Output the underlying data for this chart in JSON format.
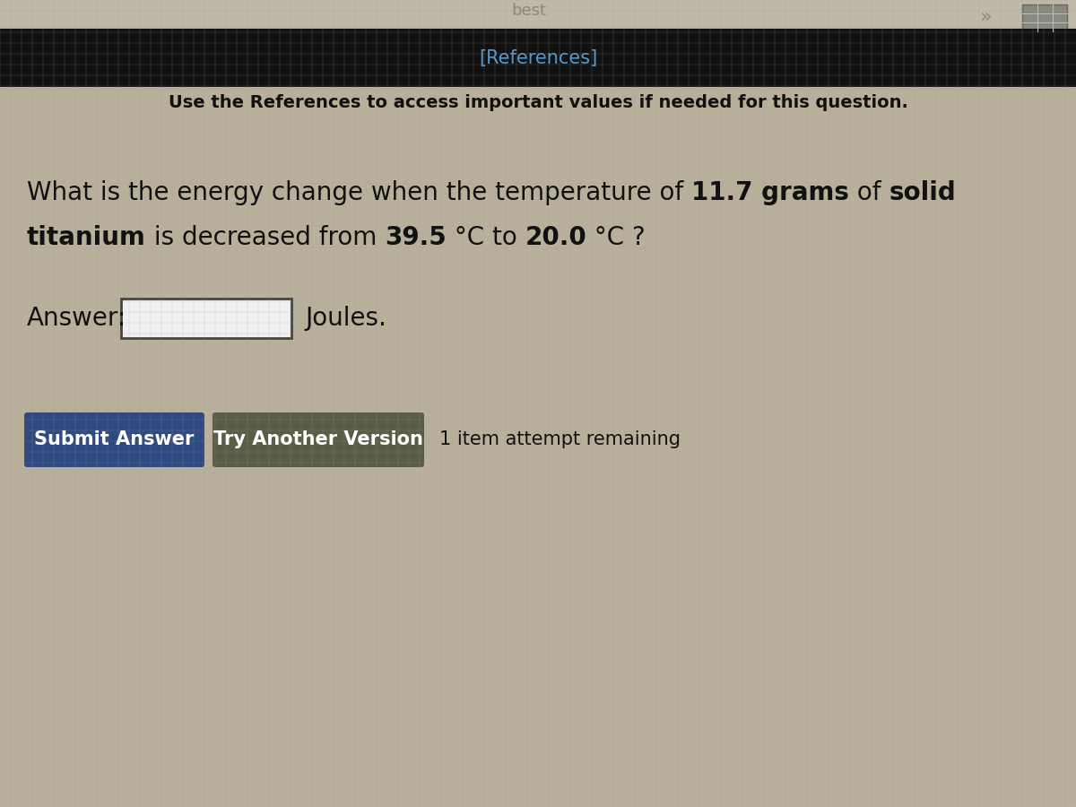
{
  "bg_color": "#b8b09a",
  "top_bar_color": "#111111",
  "references_text": "[References]",
  "references_color": "#5599cc",
  "subtitle_text": "Use the References to access important values if needed for this question.",
  "answer_label": "Answer:",
  "joules_label": "Joules.",
  "submit_btn_text": "Submit Answer",
  "submit_btn_color": "#2e4a80",
  "try_btn_text": "Try Another Version",
  "try_btn_color": "#5a5c46",
  "attempt_text": "1 item attempt remaining",
  "text_color": "#111111",
  "input_box_color": "#f0f0f0",
  "top_partial_text": "best",
  "chevron_text": "»",
  "line1_parts": [
    [
      "What is the energy change when the temperature of ",
      false
    ],
    [
      "11.7 grams",
      true
    ],
    [
      " of ",
      false
    ],
    [
      "solid",
      true
    ]
  ],
  "line2_parts": [
    [
      "titanium",
      true
    ],
    [
      " is decreased from ",
      false
    ],
    [
      "39.5",
      true
    ],
    [
      " °C to ",
      false
    ],
    [
      "20.0",
      true
    ],
    [
      " °C ?",
      false
    ]
  ]
}
